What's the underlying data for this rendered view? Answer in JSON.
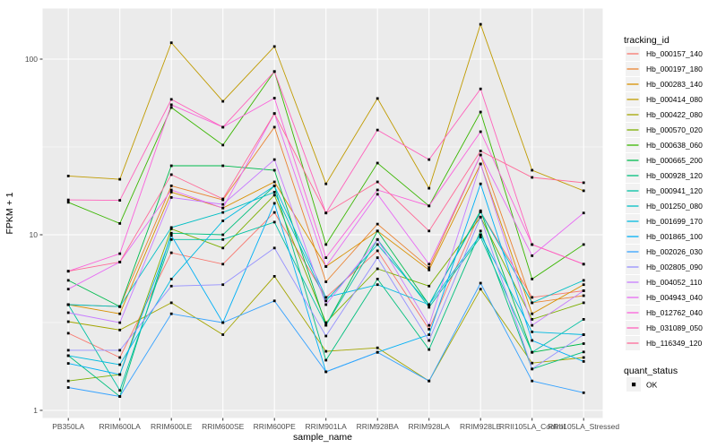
{
  "window": {
    "kind": "static-plot-render",
    "background": "#ffffff"
  },
  "chart_data": {
    "type": "line",
    "title": "",
    "xlabel": "sample_name",
    "ylabel": "FPKM + 1",
    "y_scale": "log10",
    "ylim": [
      1,
      193
    ],
    "y_ticks": [
      1,
      10,
      100
    ],
    "y_minor_ticks": [
      3.162,
      31.62
    ],
    "grid": true,
    "panel_bg": "#EBEBEB",
    "grid_color": "#FFFFFF",
    "axis_text_color": "#4d4d4d",
    "point_color": "#000000",
    "point_shape": "square",
    "legend_title": "tracking_id",
    "legend_position": "right",
    "quant_status": {
      "title": "quant_status",
      "entries": [
        {
          "label": "OK",
          "marker": "black-square"
        }
      ]
    },
    "categories": [
      "PB350LA",
      "RRIM600LA",
      "RRIM600LE",
      "RRIM600SE",
      "RRIM600PE",
      "RRIM901LA",
      "RRIM928BA",
      "RRIM928LA",
      "RRIM928LE",
      "RRII105LA_Control",
      "RRII105LA_Stressed"
    ],
    "series": [
      {
        "name": "Hb_000157_140",
        "color": "#F8766D",
        "values": [
          2.75,
          2.0,
          7.9,
          6.8,
          13.4,
          4.4,
          8.1,
          2.9,
          13.5,
          4.4,
          4.8
        ]
      },
      {
        "name": "Hb_000197_180",
        "color": "#EA8331",
        "values": [
          4.0,
          3.9,
          19.0,
          15.8,
          41.0,
          5.4,
          11.5,
          6.5,
          28.5,
          4.1,
          4.5
        ]
      },
      {
        "name": "Hb_000283_140",
        "color": "#D89000",
        "values": [
          4.0,
          3.55,
          17.5,
          14.2,
          20.0,
          6.6,
          10.5,
          6.3,
          25.3,
          3.55,
          5.2
        ]
      },
      {
        "name": "Hb_000414_080",
        "color": "#C09B00",
        "values": [
          21.6,
          20.7,
          124.0,
          57.5,
          118.0,
          19.5,
          59.7,
          18.4,
          158.0,
          23.3,
          17.8
        ]
      },
      {
        "name": "Hb_000422_080",
        "color": "#A3A500",
        "values": [
          3.2,
          2.87,
          4.1,
          2.7,
          5.8,
          2.17,
          2.27,
          1.47,
          4.9,
          1.86,
          2.0
        ]
      },
      {
        "name": "Hb_000570_020",
        "color": "#7CAE00",
        "values": [
          1.47,
          1.6,
          10.8,
          8.4,
          16.8,
          3.16,
          6.4,
          5.1,
          12.6,
          3.3,
          4.1
        ]
      },
      {
        "name": "Hb_000638_060",
        "color": "#39B600",
        "values": [
          15.3,
          11.6,
          53.0,
          32.4,
          85.0,
          8.8,
          25.6,
          14.6,
          50.0,
          5.6,
          8.8
        ]
      },
      {
        "name": "Hb_000665_200",
        "color": "#00BB4E",
        "values": [
          5.5,
          3.9,
          24.7,
          24.7,
          23.3,
          3.05,
          10.5,
          4.0,
          13.7,
          2.14,
          2.4
        ]
      },
      {
        "name": "Hb_000928_120",
        "color": "#00BF7D",
        "values": [
          2.05,
          1.2,
          10.2,
          10.0,
          19.0,
          1.93,
          5.6,
          2.22,
          10.5,
          1.72,
          2.15
        ]
      },
      {
        "name": "Hb_000941_120",
        "color": "#00C1A3",
        "values": [
          4.0,
          1.3,
          9.4,
          9.4,
          11.8,
          3.05,
          9.4,
          3.86,
          9.7,
          2.14,
          3.3
        ]
      },
      {
        "name": "Hb_001250_080",
        "color": "#00BFC4",
        "values": [
          4.0,
          3.9,
          11.0,
          13.4,
          17.5,
          4.2,
          8.8,
          4.0,
          13.5,
          4.1,
          5.5
        ]
      },
      {
        "name": "Hb_001699_170",
        "color": "#00BAE0",
        "values": [
          2.05,
          1.82,
          5.6,
          12.0,
          19.0,
          4.4,
          5.2,
          4.0,
          10.0,
          2.8,
          2.7
        ]
      },
      {
        "name": "Hb_001865_100",
        "color": "#00B0F6",
        "values": [
          1.85,
          1.6,
          9.9,
          3.16,
          15.1,
          1.66,
          2.14,
          2.7,
          19.5,
          2.5,
          1.9
        ]
      },
      {
        "name": "Hb_002026_030",
        "color": "#35A2FF",
        "values": [
          1.35,
          1.2,
          3.55,
          3.16,
          4.2,
          1.66,
          2.14,
          1.47,
          5.3,
          1.47,
          1.26
        ]
      },
      {
        "name": "Hb_002805_090",
        "color": "#9590FF",
        "values": [
          2.2,
          2.2,
          5.1,
          5.2,
          8.4,
          2.65,
          7.4,
          2.5,
          12.6,
          1.72,
          2.7
        ]
      },
      {
        "name": "Hb_004052_110",
        "color": "#C77CFF",
        "values": [
          3.6,
          3.16,
          16.3,
          14.9,
          26.8,
          4.0,
          9.4,
          3.05,
          25.3,
          3.05,
          4.8
        ]
      },
      {
        "name": "Hb_004943_040",
        "color": "#E76BF3",
        "values": [
          4.9,
          7.0,
          18.0,
          14.2,
          49.0,
          6.6,
          17.0,
          6.8,
          28.5,
          7.6,
          13.3
        ]
      },
      {
        "name": "Hb_012762_040",
        "color": "#FA62DB",
        "values": [
          6.2,
          7.8,
          55.0,
          41.0,
          60.0,
          7.4,
          18.0,
          14.6,
          38.6,
          8.8,
          6.8
        ]
      },
      {
        "name": "Hb_031089_050",
        "color": "#FF62BC",
        "values": [
          15.8,
          15.7,
          59.0,
          41.0,
          85.0,
          13.3,
          39.5,
          26.8,
          67.7,
          8.8,
          6.8
        ]
      },
      {
        "name": "Hb_116349_120",
        "color": "#FF6A98",
        "values": [
          6.2,
          7.0,
          22.0,
          16.0,
          49.0,
          13.3,
          20.0,
          10.5,
          30.0,
          21.2,
          19.8
        ]
      }
    ]
  }
}
